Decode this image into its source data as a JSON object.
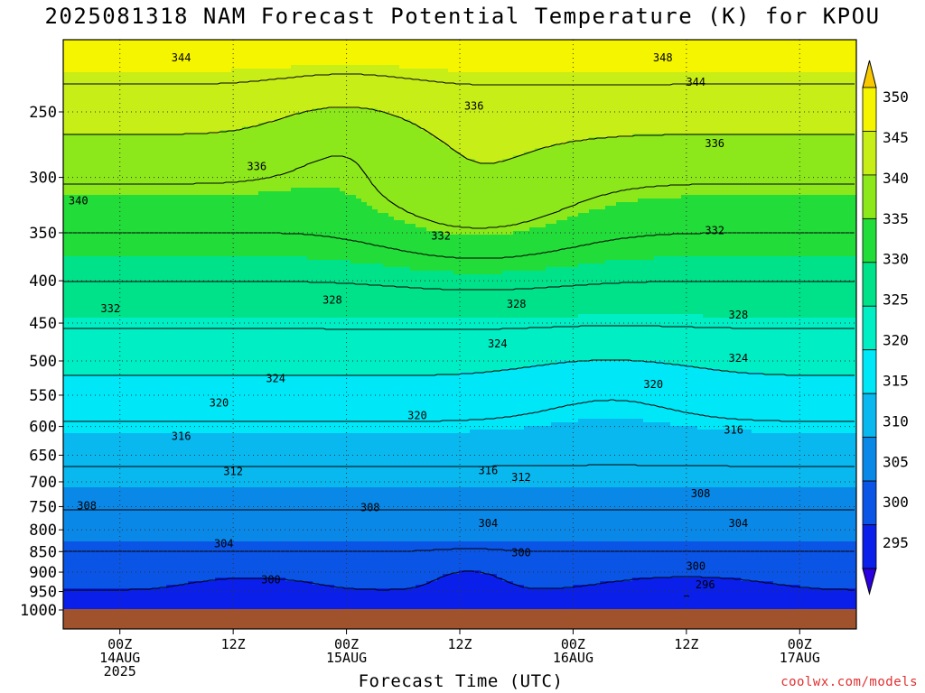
{
  "title": "2025081318 NAM Forecast Potential Temperature (K) for KPOU",
  "credit": "coolwx.com/models",
  "chart_data": {
    "type": "heatmap",
    "title": "2025081318 NAM Forecast Potential Temperature (K) for KPOU",
    "xlabel": "Forecast Time (UTC)",
    "ylabel": "",
    "x_ticks": [
      {
        "hour": 6,
        "lines": [
          "00Z",
          "14AUG",
          "2025"
        ]
      },
      {
        "hour": 18,
        "lines": [
          "12Z"
        ]
      },
      {
        "hour": 30,
        "lines": [
          "00Z",
          "15AUG"
        ]
      },
      {
        "hour": 42,
        "lines": [
          "12Z"
        ]
      },
      {
        "hour": 54,
        "lines": [
          "00Z",
          "16AUG"
        ]
      },
      {
        "hour": 66,
        "lines": [
          "12Z"
        ]
      },
      {
        "hour": 78,
        "lines": [
          "00Z",
          "17AUG"
        ]
      }
    ],
    "xlim": [
      0,
      84
    ],
    "y_ticks": [
      250,
      300,
      350,
      400,
      450,
      500,
      550,
      600,
      650,
      700,
      750,
      800,
      850,
      900,
      950,
      1000
    ],
    "ylim": [
      1000,
      200
    ],
    "y_scale": "log-pressure",
    "colorbar": {
      "levels": [
        295,
        300,
        305,
        310,
        315,
        320,
        325,
        330,
        335,
        340,
        345,
        350
      ],
      "labels": [
        "350",
        "345",
        "340",
        "335",
        "330",
        "325",
        "320",
        "315",
        "310",
        "305",
        "300",
        "295"
      ],
      "colors": [
        "#2b00e0",
        "#0a20ea",
        "#0a55e6",
        "#0a88e8",
        "#0ab8f0",
        "#00e8f8",
        "#00eec4",
        "#00e28a",
        "#22dc3a",
        "#8ce81a",
        "#c8ee18",
        "#f5f500",
        "#f8c800"
      ]
    },
    "contour_interval": 4,
    "contour_labels": [
      {
        "hour": 12.5,
        "p": 215,
        "v": "344"
      },
      {
        "hour": 63.5,
        "p": 215,
        "v": "348"
      },
      {
        "hour": 67.0,
        "p": 230,
        "v": "344"
      },
      {
        "hour": 43.5,
        "p": 246,
        "v": "336"
      },
      {
        "hour": 69.0,
        "p": 273,
        "v": "336"
      },
      {
        "hour": 20.5,
        "p": 291,
        "v": "336"
      },
      {
        "hour": 1.6,
        "p": 320,
        "v": "340"
      },
      {
        "hour": 40.0,
        "p": 353,
        "v": "332"
      },
      {
        "hour": 69.0,
        "p": 348,
        "v": "332"
      },
      {
        "hour": 5.0,
        "p": 432,
        "v": "332"
      },
      {
        "hour": 28.5,
        "p": 422,
        "v": "328"
      },
      {
        "hour": 48.0,
        "p": 427,
        "v": "328"
      },
      {
        "hour": 71.5,
        "p": 440,
        "v": "328"
      },
      {
        "hour": 46.0,
        "p": 477,
        "v": "324"
      },
      {
        "hour": 71.5,
        "p": 496,
        "v": "324"
      },
      {
        "hour": 22.5,
        "p": 525,
        "v": "324"
      },
      {
        "hour": 62.5,
        "p": 534,
        "v": "320"
      },
      {
        "hour": 16.5,
        "p": 562,
        "v": "320"
      },
      {
        "hour": 37.5,
        "p": 582,
        "v": "320"
      },
      {
        "hour": 71.0,
        "p": 606,
        "v": "316"
      },
      {
        "hour": 12.5,
        "p": 617,
        "v": "316"
      },
      {
        "hour": 18.0,
        "p": 680,
        "v": "312"
      },
      {
        "hour": 45.0,
        "p": 678,
        "v": "316"
      },
      {
        "hour": 48.5,
        "p": 691,
        "v": "312"
      },
      {
        "hour": 67.5,
        "p": 723,
        "v": "308"
      },
      {
        "hour": 2.5,
        "p": 748,
        "v": "308"
      },
      {
        "hour": 32.5,
        "p": 752,
        "v": "308"
      },
      {
        "hour": 45.0,
        "p": 786,
        "v": "304"
      },
      {
        "hour": 71.5,
        "p": 786,
        "v": "304"
      },
      {
        "hour": 17.0,
        "p": 831,
        "v": "304"
      },
      {
        "hour": 48.5,
        "p": 853,
        "v": "300"
      },
      {
        "hour": 67.0,
        "p": 885,
        "v": "300"
      },
      {
        "hour": 22.0,
        "p": 919,
        "v": "300"
      },
      {
        "hour": 68.0,
        "p": 932,
        "v": "296"
      }
    ]
  }
}
